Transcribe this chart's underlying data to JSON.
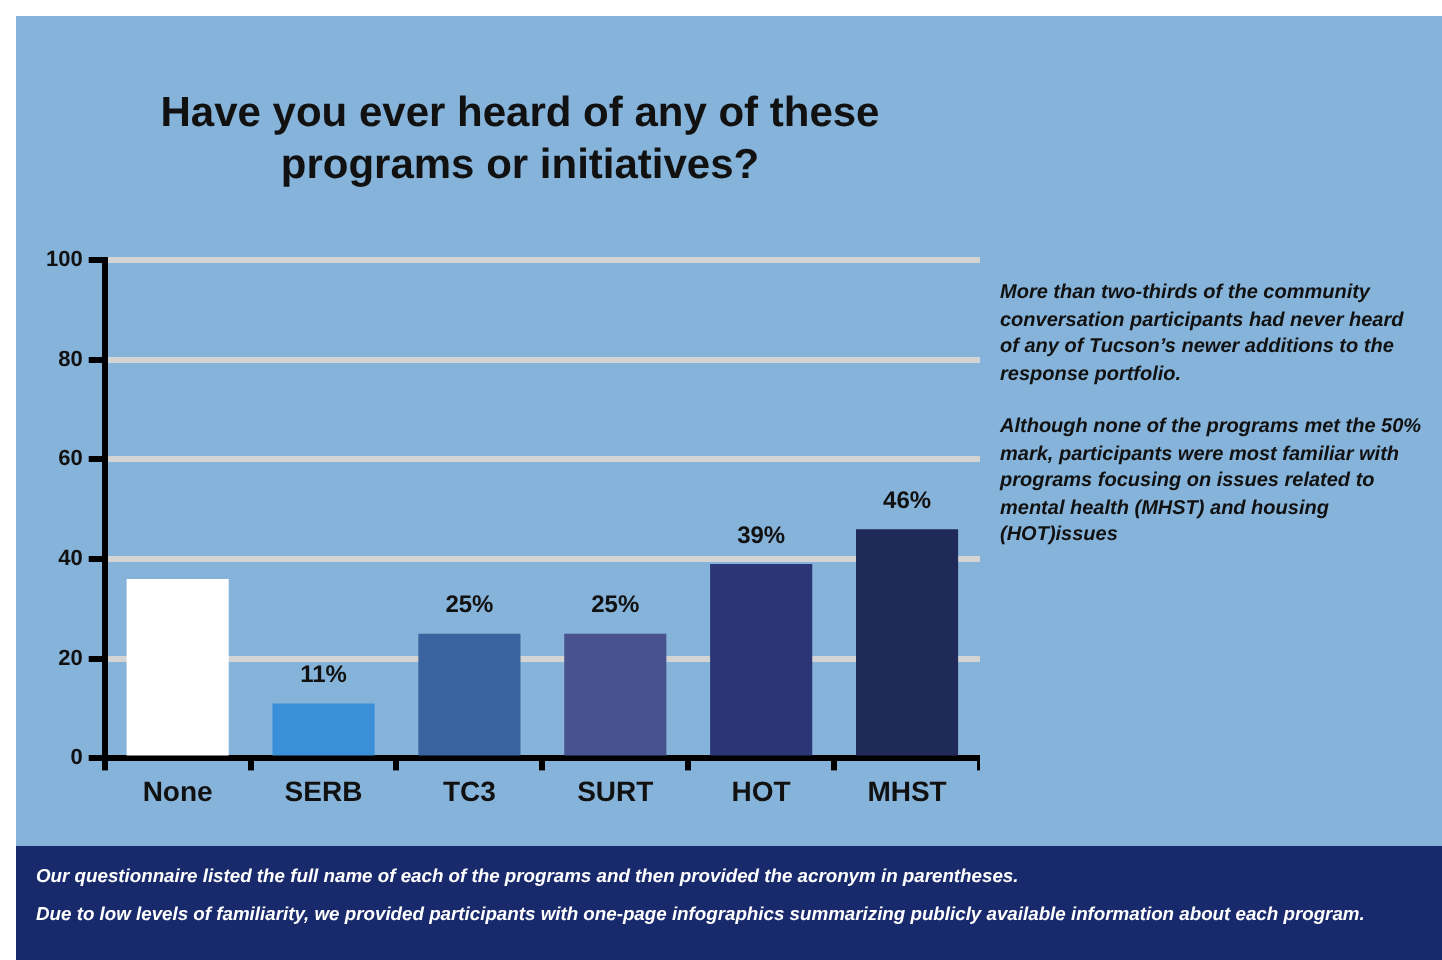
{
  "chart_data": {
    "type": "bar",
    "title": "Have you ever heard of any of these programs or initiatives?",
    "categories": [
      "None",
      "SERB",
      "TC3",
      "SURT",
      "HOT",
      "MHST"
    ],
    "values": [
      36,
      11,
      25,
      25,
      39,
      46
    ],
    "colors": [
      "#ffffff",
      "#3a8fd8",
      "#3a64a0",
      "#47528e",
      "#2c3575",
      "#1f2a58"
    ],
    "value_labels": [
      null,
      "11%",
      "25%",
      "25%",
      "39%",
      "46%"
    ],
    "ylim": [
      0,
      100
    ],
    "yticks": [
      0,
      20,
      40,
      60,
      80,
      100
    ],
    "grid": "y",
    "legend": false,
    "annotations": [
      "More than two-thirds of the community conversation participants had never heard of any of Tucson’s newer additions to the response portfolio.",
      "Although none of the programs met the 50% mark, participants were most familiar with programs focusing on issues related to mental health (MHST) and housing (HOT)issues",
      "Our questionnaire listed the full name of each of the programs and then provided the acronym in parentheses.",
      "Due to low levels of familiarity, we provided participants with one-page infographics summarizing publicly available information about each program."
    ]
  }
}
